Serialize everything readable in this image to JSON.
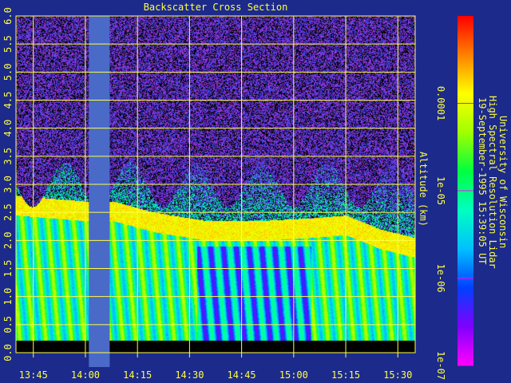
{
  "chart_data": {
    "type": "heatmap",
    "title": "Backscatter Cross Section",
    "ylabel": "Altitude (km)",
    "ylim": [
      0,
      6
    ],
    "yticks": [
      "0.0",
      "0.5",
      "1.0",
      "1.5",
      "2.0",
      "2.5",
      "3.0",
      "3.5",
      "4.0",
      "4.5",
      "5.0",
      "5.5",
      "6.0"
    ],
    "xlim_minutes_utc": [
      820,
      935
    ],
    "xticks": [
      {
        "label": "13:45",
        "minutes": 825
      },
      {
        "label": "14:00",
        "minutes": 840
      },
      {
        "label": "14:15",
        "minutes": 855
      },
      {
        "label": "14:30",
        "minutes": 870
      },
      {
        "label": "14:45",
        "minutes": 885
      },
      {
        "label": "15:00",
        "minutes": 900
      },
      {
        "label": "15:15",
        "minutes": 915
      },
      {
        "label": "15:30",
        "minutes": 930
      }
    ],
    "data_gap_minutes": [
      841,
      847
    ],
    "ground_blank_below_km": 0.22,
    "noise_onset_km": 3.0,
    "cloud_top_km": [
      {
        "minutes": 820,
        "top": 2.8
      },
      {
        "minutes": 830,
        "top": 2.75
      },
      {
        "minutes": 840,
        "top": 2.7
      },
      {
        "minutes": 848,
        "top": 2.7
      },
      {
        "minutes": 860,
        "top": 2.5
      },
      {
        "minutes": 875,
        "top": 2.35
      },
      {
        "minutes": 890,
        "top": 2.35
      },
      {
        "minutes": 905,
        "top": 2.4
      },
      {
        "minutes": 915,
        "top": 2.45
      },
      {
        "minutes": 925,
        "top": 2.2
      },
      {
        "minutes": 935,
        "top": 2.05
      }
    ],
    "colorbar": {
      "scale": "log",
      "range": [
        1e-07,
        0.001
      ],
      "ticks": [
        {
          "label": "0.0001",
          "value": 0.0001
        },
        {
          "label": "1e-05",
          "value": 1e-05
        },
        {
          "label": "1e-06",
          "value": 1e-06
        },
        {
          "label": "1e-07",
          "value": 1e-07
        }
      ],
      "colors": [
        "#ff00ff",
        "#8000ff",
        "#0040ff",
        "#00c0ff",
        "#00ffc0",
        "#00ff40",
        "#a0ff00",
        "#ffff00",
        "#ff8000",
        "#ff0000"
      ]
    }
  },
  "caption": {
    "line1": "University of Wisconsin",
    "line2": "High Spectral Resolution Lidar",
    "line3": "19-September-1995 15:39:05 UT"
  },
  "colors": {
    "background": "#1c2a8c",
    "axis": "#ffff40",
    "gap": "#4a6ac8",
    "ground": "#000000"
  }
}
